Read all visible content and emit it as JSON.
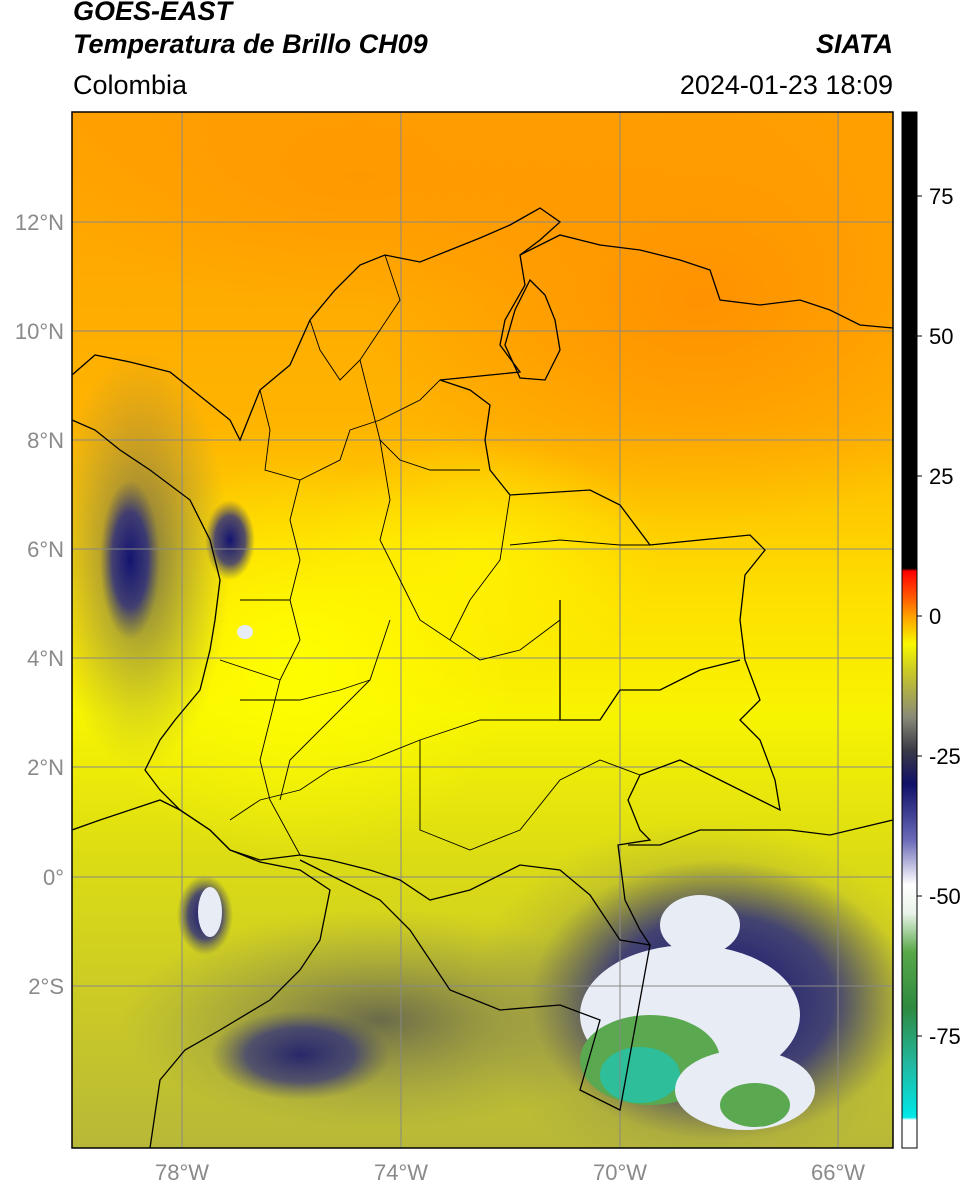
{
  "header": {
    "satellite": "GOES-EAST",
    "product": "Temperatura de Brillo CH09",
    "region": "Colombia",
    "source": "SIATA",
    "datetime": "2024-01-23 18:09"
  },
  "map": {
    "projection": "PlateCarree",
    "extent": {
      "lon_min": -80,
      "lon_max": -65.2,
      "lat_min": -5.1,
      "lat_max": 14
    },
    "lat_ticks": [
      {
        "value": 12,
        "label": "12°N"
      },
      {
        "value": 10,
        "label": "10°N"
      },
      {
        "value": 8,
        "label": "8°N"
      },
      {
        "value": 6,
        "label": "6°N"
      },
      {
        "value": 4,
        "label": "4°N"
      },
      {
        "value": 2,
        "label": "2°N"
      },
      {
        "value": 0,
        "label": "0°"
      },
      {
        "value": -2,
        "label": "2°S"
      }
    ],
    "lon_ticks": [
      {
        "value": -78,
        "label": "78°W"
      },
      {
        "value": -74,
        "label": "74°W"
      },
      {
        "value": -70,
        "label": "70°W"
      },
      {
        "value": -66,
        "label": "66°W"
      }
    ],
    "gridlines": true,
    "background_color": "#f5d800",
    "warm_color": "#ff9a00",
    "cold_cloud_colors": [
      "#1a1a7a",
      "#ffffff",
      "#3a9a3a",
      "#2ec8a8"
    ]
  },
  "colorbar": {
    "position": "right",
    "vmin": -95,
    "vmax": 90,
    "ticks": [
      {
        "value": 75,
        "label": "75"
      },
      {
        "value": 50,
        "label": "50"
      },
      {
        "value": 25,
        "label": "25"
      },
      {
        "value": 0,
        "label": "0"
      },
      {
        "value": -25,
        "label": "-25"
      },
      {
        "value": -50,
        "label": "-50"
      },
      {
        "value": -75,
        "label": "-75"
      }
    ],
    "stops": [
      {
        "value": -95,
        "color": "#ffffff"
      },
      {
        "value": -90,
        "color": "#ffffff"
      },
      {
        "value": -89.5,
        "color": "#00e8e8"
      },
      {
        "value": -80,
        "color": "#22b8a0"
      },
      {
        "value": -70,
        "color": "#2e8a40"
      },
      {
        "value": -60,
        "color": "#58a848"
      },
      {
        "value": -53,
        "color": "#eaf4ea"
      },
      {
        "value": -48,
        "color": "#ffffff"
      },
      {
        "value": -40,
        "color": "#6a6ab8"
      },
      {
        "value": -30,
        "color": "#101068"
      },
      {
        "value": -24,
        "color": "#3a3a46"
      },
      {
        "value": -18,
        "color": "#8a8a78"
      },
      {
        "value": -10,
        "color": "#c8c828"
      },
      {
        "value": -5,
        "color": "#f8f800"
      },
      {
        "value": 0,
        "color": "#ffa000"
      },
      {
        "value": 3,
        "color": "#ff6000"
      },
      {
        "value": 8,
        "color": "#ff0000"
      },
      {
        "value": 8.5,
        "color": "#000000"
      },
      {
        "value": 90,
        "color": "#000000"
      }
    ]
  }
}
